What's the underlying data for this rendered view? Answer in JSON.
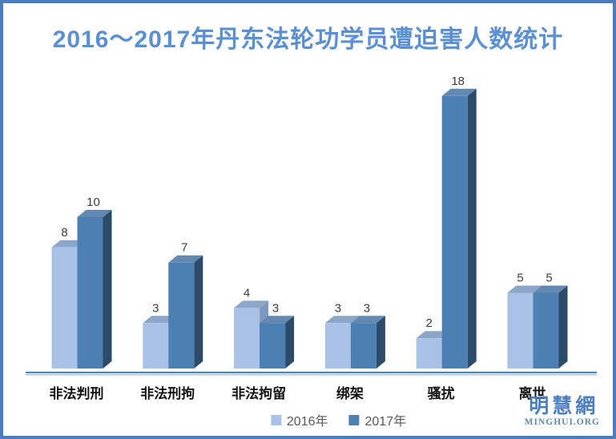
{
  "title": "2016～2017年丹东法轮功学员遭迫害人数统计",
  "chart_data": {
    "type": "bar",
    "style": "3d-column-pairs",
    "title": "2016～2017年丹东法轮功学员遭迫害人数统计",
    "categories": [
      "非法判刑",
      "非法刑拘",
      "非法拘留",
      "绑架",
      "骚扰",
      "离世"
    ],
    "series": [
      {
        "name": "2016年",
        "values": [
          8,
          3,
          4,
          3,
          2,
          5
        ]
      },
      {
        "name": "2017年",
        "values": [
          10,
          7,
          3,
          3,
          18,
          5
        ]
      }
    ],
    "value_labels": true,
    "xlabel": "",
    "ylabel": "",
    "ylim": [
      0,
      18
    ],
    "grid": false,
    "y_axis_visible": false,
    "legend_position": "bottom-center"
  },
  "legend": {
    "items": [
      {
        "label": "2016年",
        "color": "#a8c1e4"
      },
      {
        "label": "2017年",
        "color": "#4c80b4"
      }
    ]
  },
  "watermark": {
    "line1": "明慧網",
    "line2": "MINGHUI.ORG"
  },
  "colors": {
    "frame_border": "#4b7db8",
    "title_text": "#5b8fd4",
    "axis_line": "#4f81bd",
    "axis_line_light": "#b4c9e6",
    "value_label_text": "#3d3d3d",
    "category_label_text": "#141414",
    "legend_text": "#595959",
    "watermark_blue": "#4d7ec0",
    "series_faces": [
      {
        "front": "#a8c1e4",
        "top": "#8ca5c9",
        "side": "#7e98c0"
      },
      {
        "front": "#4c80b4",
        "top": "#6389b3",
        "side": "#2b4b69"
      }
    ]
  }
}
